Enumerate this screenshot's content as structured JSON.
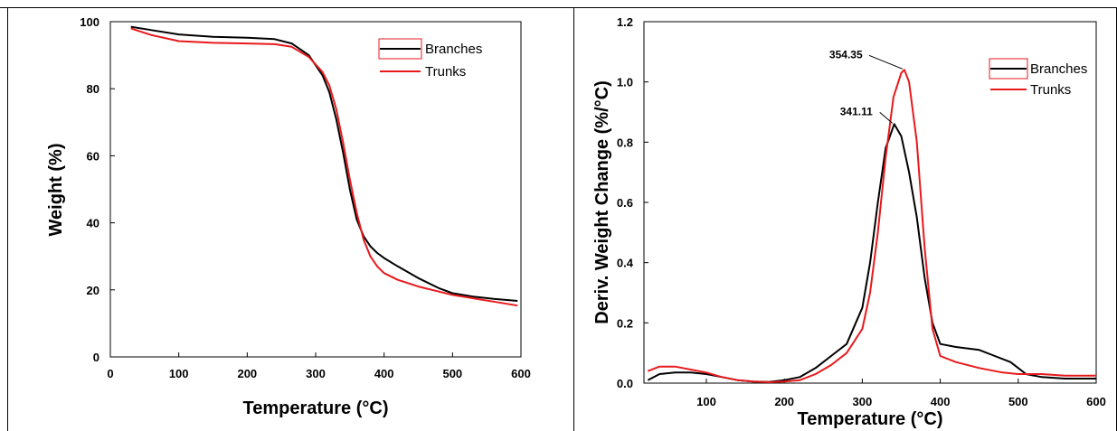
{
  "colors": {
    "branches": "#000000",
    "trunks": "#e8191c",
    "frame": "#000000",
    "background": "#ffffff"
  },
  "chart_data": [
    {
      "type": "line",
      "xlabel": "Temperature (°C)",
      "ylabel": "Weight (%)",
      "xlim": [
        0,
        600
      ],
      "ylim": [
        0,
        100
      ],
      "xticks": [
        "0",
        "100",
        "200",
        "300",
        "400",
        "500",
        "600"
      ],
      "yticks": [
        "0",
        "20",
        "40",
        "60",
        "80",
        "100"
      ],
      "grid": false,
      "legend_position": "top-right",
      "legend": [
        "Branches",
        "Trunks"
      ],
      "series": [
        {
          "name": "Branches",
          "x": [
            30,
            60,
            100,
            150,
            200,
            240,
            265,
            290,
            310,
            320,
            330,
            340,
            350,
            360,
            370,
            380,
            390,
            400,
            420,
            450,
            480,
            500,
            530,
            560,
            595
          ],
          "y": [
            98.5,
            97.5,
            96.2,
            95.5,
            95.2,
            94.8,
            93.5,
            90,
            84,
            79,
            71,
            61,
            50,
            41,
            36,
            33,
            31,
            29.5,
            27,
            23.5,
            20.5,
            19,
            18,
            17.3,
            16.7
          ]
        },
        {
          "name": "Trunks",
          "x": [
            30,
            60,
            100,
            150,
            200,
            240,
            265,
            290,
            310,
            320,
            330,
            340,
            350,
            360,
            370,
            380,
            390,
            400,
            420,
            450,
            480,
            500,
            530,
            560,
            595
          ],
          "y": [
            98,
            96,
            94.2,
            93.7,
            93.5,
            93.3,
            92.5,
            89.5,
            85,
            81,
            74,
            64,
            53,
            43,
            35,
            30,
            27,
            25,
            23,
            21,
            19.5,
            18.5,
            17.5,
            16.5,
            15.3
          ]
        }
      ]
    },
    {
      "type": "line",
      "xlabel": "Temperature (°C)",
      "ylabel": "Deriv. Weight Change (%/°C)",
      "xlim": [
        20,
        600
      ],
      "ylim": [
        0,
        1.2
      ],
      "xticks": [
        "100",
        "200",
        "300",
        "400",
        "500",
        "600"
      ],
      "yticks": [
        "0.0",
        "0.2",
        "0.4",
        "0.6",
        "0.8",
        "1.0",
        "1.2"
      ],
      "grid": false,
      "legend_position": "top-right",
      "legend": [
        "Branches",
        "Trunks"
      ],
      "annotations": [
        "341.11",
        "354.35"
      ],
      "series": [
        {
          "name": "Branches",
          "x": [
            25,
            40,
            60,
            80,
            100,
            120,
            140,
            160,
            180,
            200,
            220,
            240,
            260,
            280,
            300,
            310,
            320,
            330,
            341,
            350,
            360,
            370,
            380,
            390,
            400,
            420,
            450,
            470,
            490,
            500,
            510,
            530,
            560,
            600
          ],
          "y": [
            0.01,
            0.03,
            0.035,
            0.035,
            0.03,
            0.02,
            0.01,
            0.005,
            0.004,
            0.01,
            0.02,
            0.05,
            0.09,
            0.13,
            0.25,
            0.4,
            0.6,
            0.78,
            0.86,
            0.82,
            0.7,
            0.55,
            0.35,
            0.2,
            0.13,
            0.12,
            0.11,
            0.09,
            0.07,
            0.05,
            0.03,
            0.02,
            0.015,
            0.015
          ]
        },
        {
          "name": "Trunks",
          "x": [
            25,
            40,
            60,
            80,
            100,
            120,
            140,
            160,
            180,
            200,
            220,
            240,
            260,
            280,
            300,
            310,
            320,
            330,
            340,
            350,
            354,
            360,
            370,
            380,
            390,
            400,
            420,
            450,
            480,
            500,
            530,
            560,
            600
          ],
          "y": [
            0.04,
            0.055,
            0.055,
            0.045,
            0.035,
            0.02,
            0.01,
            0.005,
            0.003,
            0.005,
            0.01,
            0.03,
            0.06,
            0.1,
            0.18,
            0.3,
            0.5,
            0.75,
            0.95,
            1.03,
            1.04,
            1.0,
            0.8,
            0.45,
            0.18,
            0.09,
            0.07,
            0.05,
            0.035,
            0.03,
            0.03,
            0.025,
            0.025
          ]
        }
      ]
    }
  ]
}
